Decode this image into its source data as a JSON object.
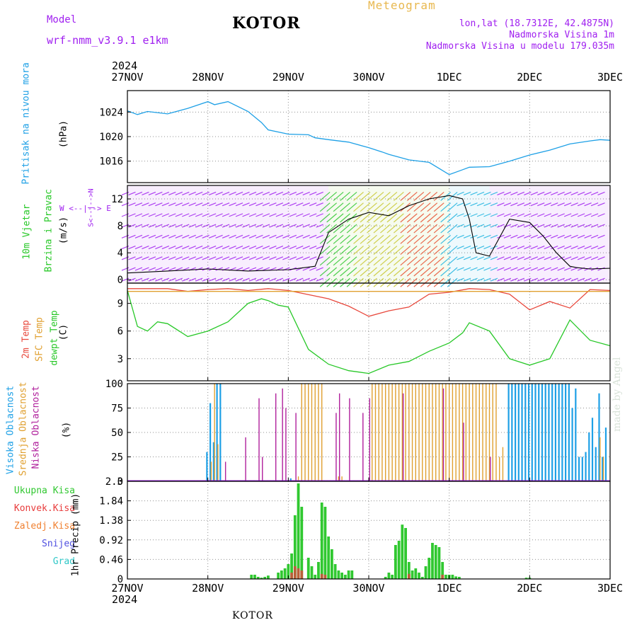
{
  "header": {
    "model_label": "Model",
    "model_name": "wrf-nmm_v3.9.1  e1km",
    "title": "KOTOR",
    "meteogram": "Meteogram",
    "lonlat": "lon,lat (18.7312E, 42.4875N)",
    "elevation": "Nadmorska Visina 1m",
    "model_elevation": "Nadmorska Visina u modelu 179.035m",
    "year_top": "2024",
    "year_bottom": "2024",
    "footer": "KOTOR",
    "watermark": "made by Angel"
  },
  "time_axis": {
    "labels": [
      "27NOV",
      "28NOV",
      "29NOV",
      "30NOV",
      "1DEC",
      "2DEC",
      "3DEC"
    ],
    "range_hours": [
      0,
      144
    ]
  },
  "panels": {
    "pressure": {
      "label": "Pritisak na nivou mora",
      "unit": "(hPa)",
      "ticks": [
        "1024",
        "1020",
        "1016"
      ]
    },
    "wind": {
      "label1": "10m Vjetar",
      "label2": "Brzina i Pravac",
      "unit": "(m/s)",
      "ticks": [
        "0",
        "4",
        "8",
        "12"
      ],
      "compass": "W <--|--> E",
      "compass_s": "S<--|-->N"
    },
    "temp": {
      "label1": "2m Temp",
      "label2": "SFC Temp",
      "label3": "dewpt Temp",
      "unit": "(C)",
      "ticks": [
        "3",
        "6",
        "9"
      ]
    },
    "cloud": {
      "label1": "Visoka Oblacnost",
      "label2": "Srednja Oblacnost",
      "label3": "Niska Oblacnost",
      "unit": "(%)",
      "ticks": [
        "0",
        "25",
        "50",
        "75",
        "100"
      ]
    },
    "precip": {
      "legend": [
        "Ukupna Kisa",
        "Konvek.Kisa",
        "Zaledj.Kisa",
        "Snijeg",
        "Grad"
      ],
      "unit": "1hr Precip (mm)",
      "ticks": [
        "0",
        "0.46",
        "0.92",
        "1.38",
        "1.84",
        "2.3"
      ]
    }
  },
  "colors": {
    "pressure": "#1ea0e6",
    "t2m": "#e8483c",
    "tsfc": "#e0a030",
    "dewpt": "#28c828",
    "high_cloud": "#1ea0e6",
    "mid_cloud": "#e0a030",
    "low_cloud": "#b0209c",
    "rain": "#30c830",
    "conv": "#e83c3c",
    "frz": "#f08030",
    "snow": "#5050e0",
    "hail": "#30c8c8",
    "wind_label": "#28c828",
    "purple_text": "#a020f0"
  },
  "chart_data": [
    {
      "type": "line",
      "title": "Pritisak na nivou mora",
      "ylabel": "hPa",
      "ylim": [
        1012.5,
        1027.5
      ],
      "x_hours": [
        0,
        3,
        6,
        12,
        18,
        24,
        26,
        30,
        36,
        40,
        42,
        48,
        54,
        56,
        60,
        66,
        72,
        76,
        78,
        84,
        90,
        96,
        100,
        102,
        108,
        114,
        120,
        126,
        132,
        138,
        141,
        144
      ],
      "values": [
        1024.2,
        1023.6,
        1024.1,
        1023.7,
        1024.6,
        1025.7,
        1025.2,
        1025.7,
        1024.1,
        1022.3,
        1021.1,
        1020.4,
        1020.3,
        1019.8,
        1019.5,
        1019.1,
        1018.2,
        1017.5,
        1017.1,
        1016.2,
        1015.8,
        1013.8,
        1014.6,
        1015.0,
        1015.1,
        1016.0,
        1017.0,
        1017.8,
        1018.8,
        1019.3,
        1019.5,
        1019.4
      ],
      "grid": true
    },
    {
      "type": "line",
      "title": "10m Vjetar Brzina i Pravac",
      "ylabel": "m/s",
      "ylim": [
        -0.5,
        14
      ],
      "speed_hours": [
        0,
        12,
        24,
        36,
        48,
        56,
        60,
        66,
        72,
        78,
        84,
        90,
        96,
        100,
        102,
        104,
        108,
        114,
        120,
        124,
        128,
        132,
        134,
        138,
        144
      ],
      "speed": [
        1.0,
        1.3,
        1.6,
        1.3,
        1.5,
        2.0,
        7.0,
        9.0,
        10.0,
        9.5,
        11.0,
        12.0,
        12.5,
        12.0,
        9.0,
        4.0,
        3.5,
        9.0,
        8.5,
        6.5,
        4.0,
        2.0,
        1.8,
        1.6,
        1.7
      ],
      "grid": true
    },
    {
      "type": "line",
      "title": "2m Temp / SFC Temp / dewpt Temp",
      "ylabel": "C",
      "ylim": [
        0.6,
        11.2
      ],
      "series": [
        {
          "name": "2m Temp",
          "x_hours": [
            0,
            12,
            18,
            24,
            30,
            36,
            42,
            48,
            60,
            66,
            72,
            78,
            84,
            90,
            96,
            102,
            108,
            114,
            120,
            126,
            132,
            138,
            144
          ],
          "values": [
            10.6,
            10.6,
            10.3,
            10.5,
            10.6,
            10.4,
            10.6,
            10.4,
            9.5,
            8.7,
            7.6,
            8.2,
            8.6,
            10.0,
            10.2,
            10.6,
            10.5,
            10.0,
            8.3,
            9.2,
            8.5,
            10.5,
            10.4
          ]
        },
        {
          "name": "SFC Temp",
          "x_hours": [
            0,
            144
          ],
          "values": [
            10.3,
            10.3
          ]
        },
        {
          "name": "dewpt Temp",
          "x_hours": [
            0,
            3,
            6,
            9,
            12,
            18,
            24,
            30,
            36,
            40,
            42,
            45,
            48,
            54,
            60,
            66,
            72,
            78,
            84,
            90,
            96,
            100,
            102,
            108,
            114,
            120,
            126,
            132,
            138,
            144
          ],
          "values": [
            10.4,
            6.5,
            6.0,
            7.0,
            6.8,
            5.4,
            6.0,
            7.0,
            9.0,
            9.5,
            9.3,
            8.8,
            8.6,
            4.0,
            2.4,
            1.7,
            1.4,
            2.3,
            2.7,
            3.8,
            4.7,
            5.8,
            6.9,
            6.0,
            3.0,
            2.3,
            3.0,
            7.2,
            5.0,
            4.4
          ]
        }
      ],
      "grid": true
    },
    {
      "type": "bar",
      "title": "Oblacnost",
      "ylabel": "%",
      "ylim": [
        0,
        100
      ],
      "series": [
        {
          "name": "Visoka Oblacnost",
          "x_hours": [
            24,
            25,
            26,
            27,
            28,
            49,
            114,
            115,
            116,
            117,
            118,
            119,
            120,
            121,
            122,
            123,
            124,
            125,
            126,
            127,
            128,
            129,
            130,
            131,
            132,
            133,
            134,
            135,
            136,
            137,
            138,
            139,
            140,
            141,
            142,
            143
          ],
          "values": [
            30,
            80,
            40,
            100,
            100,
            3,
            100,
            100,
            100,
            100,
            100,
            100,
            100,
            100,
            100,
            100,
            100,
            100,
            100,
            100,
            100,
            100,
            100,
            100,
            100,
            75,
            95,
            25,
            25,
            30,
            50,
            65,
            35,
            90,
            25,
            55
          ]
        },
        {
          "name": "Srednja Oblacnost",
          "x_hours": [
            25,
            26,
            27,
            51,
            52,
            53,
            54,
            55,
            56,
            57,
            58,
            63,
            64,
            73,
            74,
            75,
            76,
            77,
            78,
            79,
            80,
            81,
            82,
            83,
            84,
            85,
            86,
            87,
            88,
            89,
            90,
            91,
            92,
            93,
            94,
            95,
            96,
            97,
            98,
            99,
            100,
            101,
            102,
            103,
            104,
            105,
            106,
            107,
            108,
            109,
            110,
            111,
            112,
            141,
            142
          ],
          "values": [
            20,
            100,
            38,
            5,
            100,
            100,
            100,
            100,
            100,
            100,
            100,
            5,
            5,
            100,
            100,
            100,
            100,
            100,
            100,
            100,
            100,
            100,
            100,
            100,
            100,
            100,
            100,
            100,
            100,
            100,
            100,
            100,
            100,
            100,
            100,
            100,
            100,
            100,
            100,
            100,
            100,
            100,
            100,
            100,
            100,
            100,
            100,
            100,
            100,
            100,
            100,
            25,
            35,
            45,
            25
          ]
        },
        {
          "name": "Niska Oblacnost",
          "x_hours": [
            29,
            35,
            39,
            40,
            44,
            46,
            47,
            50,
            62,
            63,
            66,
            70,
            72,
            82,
            94,
            100,
            108
          ],
          "values": [
            20,
            45,
            85,
            25,
            90,
            95,
            75,
            70,
            70,
            90,
            85,
            70,
            85,
            90,
            95,
            60,
            25
          ]
        }
      ],
      "grid": true
    },
    {
      "type": "bar",
      "title": "1hr Precip",
      "ylabel": "mm",
      "ylim": [
        0,
        2.3
      ],
      "series": [
        {
          "name": "Ukupna Kisa",
          "x_hours": [
            37,
            38,
            39,
            40,
            41,
            42,
            45,
            46,
            47,
            48,
            49,
            50,
            51,
            52,
            54,
            55,
            56,
            57,
            58,
            59,
            60,
            61,
            62,
            63,
            64,
            65,
            66,
            67,
            77,
            78,
            79,
            80,
            81,
            82,
            83,
            84,
            85,
            86,
            87,
            88,
            89,
            90,
            91,
            92,
            93,
            94,
            95,
            96,
            97,
            98,
            99,
            119,
            120
          ],
          "values": [
            0.1,
            0.1,
            0.05,
            0.03,
            0.05,
            0.08,
            0.15,
            0.2,
            0.25,
            0.35,
            0.6,
            1.5,
            2.25,
            1.7,
            0.5,
            0.3,
            0.1,
            0.4,
            1.8,
            1.7,
            1.0,
            0.7,
            0.35,
            0.2,
            0.15,
            0.1,
            0.2,
            0.2,
            0.05,
            0.15,
            0.1,
            0.8,
            0.9,
            1.28,
            1.2,
            0.4,
            0.2,
            0.25,
            0.15,
            0.05,
            0.3,
            0.5,
            0.85,
            0.8,
            0.75,
            0.4,
            0.1,
            0.1,
            0.1,
            0.06,
            0.05,
            0.03,
            0.03
          ]
        },
        {
          "name": "Konvek.Kisa",
          "x_hours": [
            49,
            50,
            51,
            52,
            58,
            59,
            84,
            94
          ],
          "values": [
            0.15,
            0.3,
            0.25,
            0.2,
            0.12,
            0.1,
            0.12,
            0.1
          ]
        }
      ],
      "grid": true
    }
  ]
}
